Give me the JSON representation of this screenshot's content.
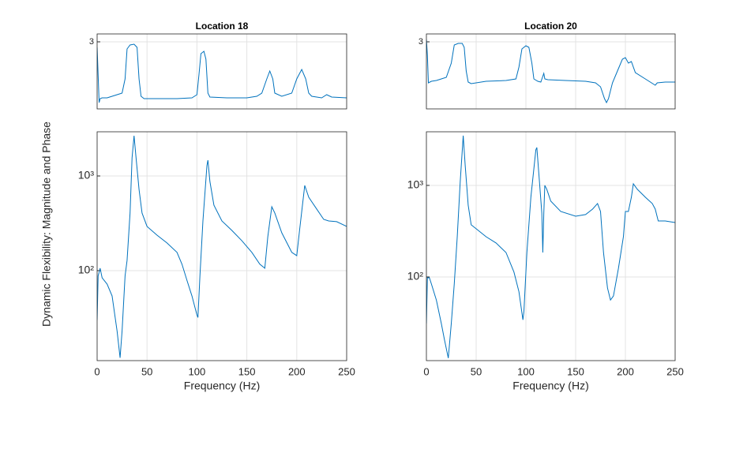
{
  "chart_data": [
    {
      "type": "line",
      "title": "Location 18",
      "xlim": [
        0,
        250
      ],
      "xticks": [
        0,
        50,
        100,
        150,
        200,
        250
      ],
      "xtick_labels": false,
      "ylim": [
        -3.8,
        3.8
      ],
      "yticks": [
        3
      ],
      "grid": true,
      "x": [
        0,
        1,
        2,
        3,
        5,
        10,
        15,
        20,
        25,
        28,
        30,
        33,
        37,
        40,
        42,
        44,
        47,
        60,
        80,
        95,
        100,
        102,
        104,
        107,
        109,
        111,
        113,
        130,
        150,
        160,
        165,
        170,
        173,
        176,
        178,
        185,
        195,
        200,
        205,
        209,
        212,
        215,
        225,
        230,
        235,
        250
      ],
      "series": [
        {
          "color": "#0072bd",
          "values": [
            2.44,
            -0.36,
            -3.16,
            -2.76,
            -2.68,
            -2.68,
            -2.52,
            -2.36,
            -2.2,
            -0.76,
            2.28,
            2.68,
            2.76,
            2.44,
            -0.76,
            -2.52,
            -2.76,
            -2.76,
            -2.76,
            -2.68,
            -2.36,
            -0.36,
            1.8,
            2.04,
            1.24,
            -2.2,
            -2.6,
            -2.68,
            -2.68,
            -2.52,
            -2.2,
            -0.76,
            0.04,
            -0.76,
            -2.2,
            -2.52,
            -2.2,
            -0.76,
            0.2,
            -0.76,
            -2.2,
            -2.52,
            -2.68,
            -2.36,
            -2.6,
            -2.68
          ]
        }
      ]
    },
    {
      "type": "line",
      "title": "Location 20",
      "xlim": [
        0,
        250
      ],
      "xticks": [
        0,
        50,
        100,
        150,
        200,
        250
      ],
      "xtick_labels": false,
      "ylim": [
        -3.8,
        3.8
      ],
      "yticks": [
        3
      ],
      "grid": true,
      "x": [
        0,
        1,
        2,
        5,
        10,
        15,
        20,
        25,
        28,
        32,
        36,
        38,
        40,
        42,
        45,
        60,
        80,
        90,
        93,
        96,
        100,
        103,
        106,
        108,
        112,
        115,
        118,
        119,
        122,
        140,
        160,
        170,
        175,
        179,
        181,
        183,
        187,
        192,
        197,
        200,
        203,
        206,
        210,
        220,
        230,
        232,
        240,
        250
      ],
      "series": [
        {
          "color": "#0072bd",
          "values": [
            3.24,
            1.64,
            -1.16,
            -1.0,
            -0.92,
            -0.76,
            -0.6,
            0.84,
            2.68,
            2.84,
            2.84,
            2.44,
            0.04,
            -1.08,
            -1.24,
            -1.0,
            -0.92,
            -0.76,
            0.44,
            2.28,
            2.6,
            2.44,
            0.84,
            -0.76,
            -1.0,
            -1.08,
            -0.2,
            -0.76,
            -0.84,
            -0.92,
            -1.0,
            -1.16,
            -1.56,
            -2.76,
            -3.16,
            -2.76,
            -1.16,
            0.04,
            1.24,
            1.4,
            0.84,
            1.0,
            -0.12,
            -0.76,
            -1.4,
            -1.16,
            -1.08,
            -1.08
          ]
        }
      ]
    },
    {
      "type": "line",
      "xlabel": "Frequency (Hz)",
      "ylabel": "Dynamic Flexibility: Magnitude and Phase",
      "xlim": [
        0,
        250
      ],
      "xticks": [
        0,
        50,
        100,
        150,
        200,
        250
      ],
      "xtick_labels": true,
      "yscale": "log",
      "ylim": [
        11.2,
        2930
      ],
      "yticks": [
        {
          "value": 100,
          "label": "10²"
        },
        {
          "value": 1000,
          "label": "10³"
        }
      ],
      "grid": true,
      "x": [
        0,
        1,
        2,
        3,
        5,
        10,
        15,
        20,
        23,
        25,
        28,
        30,
        33,
        35,
        37,
        39,
        42,
        45,
        50,
        60,
        70,
        80,
        85,
        90,
        95,
        100,
        101,
        103,
        106,
        110,
        111,
        113,
        117,
        125,
        135,
        145,
        155,
        163,
        168,
        171,
        175,
        178,
        185,
        195,
        200,
        203,
        208,
        212,
        220,
        227,
        232,
        240,
        250
      ],
      "series": [
        {
          "color": "#0072bd",
          "values": [
            30,
            88,
            96,
            106,
            84,
            72,
            54,
            23,
            12,
            23,
            88,
            128,
            406,
            1556,
            2660,
            1556,
            721,
            406,
            293,
            237,
            196,
            156,
            117,
            79,
            54,
            34,
            32,
            88,
            335,
            1283,
            1468,
            874,
            492,
            335,
            266,
            207,
            156,
            117,
            106,
            228,
            473,
            406,
            251,
            156,
            144,
            277,
            794,
            596,
            447,
            348,
            335,
            329,
            293
          ]
        }
      ]
    },
    {
      "type": "line",
      "xlabel": "Frequency (Hz)",
      "xlim": [
        0,
        250
      ],
      "xticks": [
        0,
        50,
        100,
        150,
        200,
        250
      ],
      "xtick_labels": true,
      "yscale": "log",
      "ylim": [
        12.2,
        3850
      ],
      "yticks": [
        {
          "value": 100,
          "label": "10²"
        },
        {
          "value": 1000,
          "label": "10³"
        }
      ],
      "grid": true,
      "x": [
        0,
        1,
        3,
        5,
        10,
        15,
        18,
        22,
        25,
        28,
        31,
        34,
        37,
        39,
        42,
        45,
        50,
        60,
        70,
        80,
        88,
        93,
        97,
        98,
        101,
        105,
        110,
        111,
        113,
        116,
        117,
        118,
        119,
        121,
        125,
        135,
        150,
        160,
        167,
        172,
        175,
        178,
        182,
        185,
        188,
        193,
        198,
        200,
        203,
        206,
        208,
        212,
        220,
        227,
        230,
        233,
        240,
        250
      ],
      "series": [
        {
          "color": "#0072bd",
          "values": [
            31,
            98,
            98,
            84,
            56,
            31,
            21,
            13,
            31,
            84,
            275,
            1104,
            3490,
            1643,
            608,
            371,
            336,
            275,
            235,
            185,
            113,
            69,
            34,
            42,
            185,
            743,
            2443,
            2593,
            1347,
            499,
            185,
            499,
            1000,
            906,
            673,
            519,
            461,
            480,
            551,
            634,
            519,
            185,
            76,
            56,
            62,
            124,
            275,
            519,
            519,
            743,
            1040,
            906,
            743,
            634,
            551,
            409,
            409,
            393
          ]
        }
      ]
    }
  ]
}
